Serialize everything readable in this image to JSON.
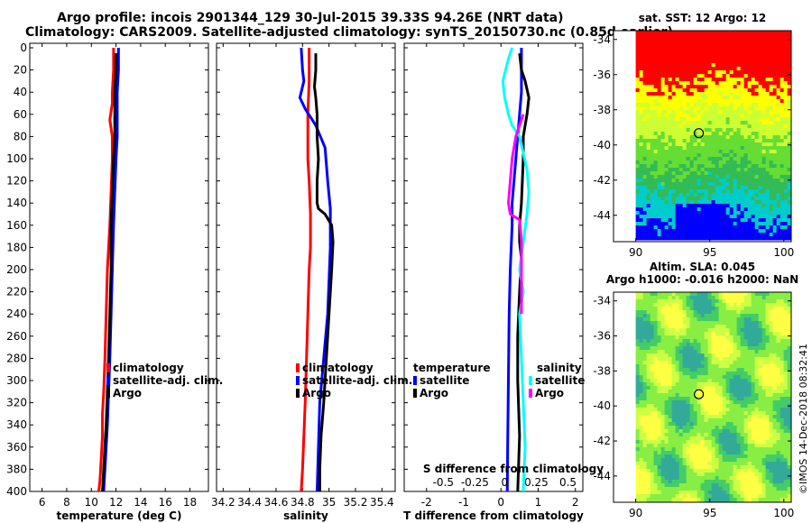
{
  "header": {
    "line1": "Argo profile: incois 2901344_129 30-Jul-2015 39.33S 94.26E (NRT data)",
    "line2": "Climatology: CARS2009. Satellite-adjusted climatology: synTS_20150730.nc (0.85d earlier)"
  },
  "credit": "©IMOS 14-Dec-2018 08:32:41",
  "colors": {
    "climatology": "#ff0000",
    "satellite": "#0000ff",
    "argo": "#000000",
    "sal_satellite": "#00ffff",
    "sal_argo": "#ff00ff"
  },
  "chart_data": [
    {
      "type": "line",
      "id": "temperature",
      "xlabel": "temperature (deg C)",
      "ylabel": "",
      "xlim": [
        5,
        19.5
      ],
      "ylim": [
        400,
        0
      ],
      "xticks": [
        "6",
        "8",
        "10",
        "12",
        "14",
        "16",
        "18"
      ],
      "xtick_values": [
        6,
        8,
        10,
        12,
        14,
        16,
        18
      ],
      "yticks": [
        "0",
        "20",
        "40",
        "60",
        "80",
        "100",
        "120",
        "140",
        "160",
        "180",
        "200",
        "220",
        "240",
        "260",
        "280",
        "300",
        "320",
        "340",
        "360",
        "380",
        "400"
      ],
      "ytick_values": [
        0,
        20,
        40,
        60,
        80,
        100,
        120,
        140,
        160,
        180,
        200,
        220,
        240,
        260,
        280,
        300,
        320,
        340,
        360,
        380,
        400
      ],
      "legend": [
        "climatology",
        "satellite-adj. clim.",
        "Argo"
      ],
      "series": [
        {
          "name": "climatology",
          "color": "#ff0000",
          "x": [
            11.8,
            11.8,
            11.7,
            11.7,
            11.5,
            11.7,
            11.7,
            11.6,
            11.5,
            11.3,
            11.2,
            11.1,
            11.0,
            10.9,
            10.9,
            10.8,
            10.7,
            10.6
          ],
          "y": [
            0,
            20,
            40,
            50,
            65,
            80,
            100,
            130,
            160,
            200,
            240,
            280,
            310,
            330,
            350,
            370,
            390,
            400
          ]
        },
        {
          "name": "satellite-adj. clim.",
          "color": "#0000ff",
          "x": [
            12.2,
            12.2,
            12.1,
            12.1,
            12.1,
            12.0,
            11.9,
            11.8,
            11.7,
            11.6,
            11.5,
            11.4,
            11.3,
            11.2,
            11.1,
            11.0
          ],
          "y": [
            0,
            20,
            40,
            60,
            80,
            100,
            130,
            160,
            200,
            240,
            280,
            310,
            340,
            360,
            380,
            400
          ]
        },
        {
          "name": "Argo",
          "color": "#000000",
          "x": [
            12.0,
            12.0,
            11.9,
            11.9,
            11.9,
            11.8,
            11.7,
            11.6,
            11.6,
            11.5,
            11.4,
            11.3,
            11.2,
            11.1,
            11.0,
            10.9
          ],
          "y": [
            5,
            20,
            40,
            60,
            80,
            100,
            130,
            160,
            200,
            240,
            280,
            310,
            340,
            360,
            380,
            400
          ]
        }
      ]
    },
    {
      "type": "line",
      "id": "salinity",
      "xlabel": "salinity",
      "ylabel": "",
      "xlim": [
        34.15,
        35.5
      ],
      "ylim": [
        400,
        0
      ],
      "xticks": [
        "34.2",
        "34.4",
        "34.6",
        "34.8",
        "35",
        "35.2",
        "35.4"
      ],
      "xtick_values": [
        34.2,
        34.4,
        34.6,
        34.8,
        35.0,
        35.2,
        35.4
      ],
      "legend": [
        "climatology",
        "satellite-adj. clim.",
        "Argo"
      ],
      "series": [
        {
          "name": "climatology",
          "color": "#ff0000",
          "x": [
            34.85,
            34.85,
            34.84,
            34.84,
            34.84,
            34.85,
            34.86,
            34.86,
            34.85,
            34.84,
            34.83,
            34.82,
            34.81,
            34.8,
            34.79
          ],
          "y": [
            0,
            30,
            60,
            80,
            100,
            120,
            150,
            180,
            200,
            240,
            280,
            320,
            350,
            380,
            400
          ]
        },
        {
          "name": "satellite-adj. clim.",
          "color": "#0000ff",
          "x": [
            34.79,
            34.8,
            34.81,
            34.78,
            34.82,
            34.9,
            34.97,
            34.99,
            35.01,
            35.01,
            34.99,
            34.96,
            34.93,
            34.92,
            34.91
          ],
          "y": [
            0,
            20,
            30,
            45,
            55,
            70,
            90,
            120,
            145,
            180,
            240,
            280,
            320,
            360,
            400
          ]
        },
        {
          "name": "Argo",
          "color": "#000000",
          "x": [
            34.9,
            34.9,
            34.89,
            34.9,
            34.91,
            34.91,
            34.92,
            34.91,
            34.91,
            34.91,
            34.92,
            34.97,
            35.02,
            35.03,
            35.02,
            35.0,
            34.98,
            34.96,
            34.94,
            34.93,
            34.93
          ],
          "y": [
            5,
            20,
            35,
            45,
            60,
            80,
            100,
            120,
            135,
            140,
            145,
            150,
            160,
            175,
            200,
            240,
            280,
            320,
            350,
            380,
            400
          ]
        }
      ]
    },
    {
      "type": "line",
      "id": "difference",
      "xlabel": "T difference from climatology",
      "xlabel_top": "S difference from climatology",
      "xlim": [
        -2.6,
        2.2
      ],
      "ylim": [
        400,
        0
      ],
      "xticks": [
        "-2",
        "-1",
        "0",
        "1",
        "2"
      ],
      "xtick_values": [
        -2,
        -1,
        0,
        1,
        2
      ],
      "xticks_top": [
        "-0.5",
        "-0.25",
        "0",
        "0.25",
        "0.5"
      ],
      "xtick_top_values": [
        -1.55,
        -0.7,
        0.1,
        0.95,
        1.8
      ],
      "legend_temperature_title": "temperature",
      "legend_salinity_title": "salinity",
      "legend_temperature": [
        "satellite",
        "Argo"
      ],
      "legend_salinity": [
        "satellite",
        "Argo"
      ],
      "series": [
        {
          "name": "T satellite",
          "color": "#0000ff",
          "x": [
            0.55,
            0.55,
            0.55,
            0.5,
            0.45,
            0.4,
            0.35,
            0.3,
            0.3,
            0.25,
            0.22,
            0.2,
            0.18,
            0.17
          ],
          "y": [
            0,
            20,
            40,
            60,
            80,
            100,
            120,
            140,
            160,
            200,
            240,
            300,
            360,
            400
          ]
        },
        {
          "name": "T Argo",
          "color": "#000000",
          "x": [
            0.5,
            0.55,
            0.65,
            0.75,
            0.7,
            0.6,
            0.6,
            0.55,
            0.5,
            0.5,
            0.55,
            0.5,
            0.45,
            0.45,
            0.5,
            0.45
          ],
          "y": [
            5,
            20,
            30,
            45,
            60,
            80,
            100,
            140,
            160,
            175,
            190,
            220,
            260,
            300,
            350,
            400
          ]
        },
        {
          "name": "S satellite",
          "color": "#00ffff",
          "x": [
            0.3,
            0.2,
            0.05,
            0.1,
            0.2,
            0.3,
            0.5,
            0.6,
            0.7,
            0.75,
            0.7,
            0.6,
            0.5,
            0.6,
            0.5,
            0.55,
            0.6,
            0.65,
            0.6
          ],
          "y": [
            0,
            10,
            30,
            45,
            60,
            70,
            80,
            95,
            110,
            130,
            150,
            175,
            200,
            220,
            240,
            280,
            320,
            360,
            400
          ]
        },
        {
          "name": "S Argo",
          "color": "#ff00ff",
          "x": [
            0.6,
            0.5,
            0.4,
            0.3,
            0.25,
            0.2,
            0.25,
            0.5,
            0.55,
            0.55,
            0.55
          ],
          "y": [
            60,
            70,
            80,
            100,
            120,
            140,
            150,
            155,
            175,
            200,
            240
          ]
        }
      ]
    },
    {
      "type": "heatmap",
      "id": "sst-map",
      "title": "sat. SST: 12 Argo: 12",
      "xlim": [
        88.5,
        100.5
      ],
      "ylim": [
        -45.5,
        -33.5
      ],
      "xticks": [
        "90",
        "95",
        "100"
      ],
      "xtick_values": [
        90,
        95,
        100
      ],
      "yticks": [
        "-34",
        "-36",
        "-38",
        "-40",
        "-42",
        "-44"
      ],
      "ytick_values": [
        -34,
        -36,
        -38,
        -40,
        -42,
        -44
      ],
      "marker_lon": 94.26,
      "marker_lat": -39.33
    },
    {
      "type": "heatmap",
      "id": "sla-map",
      "title": "Altim. SLA: 0.045",
      "subtitle": "Argo h1000: -0.016 h2000: NaN",
      "xlim": [
        88.5,
        100.5
      ],
      "ylim": [
        -45.5,
        -33.5
      ],
      "xticks": [
        "90",
        "95",
        "100"
      ],
      "xtick_values": [
        90,
        95,
        100
      ],
      "yticks": [
        "-34",
        "-36",
        "-38",
        "-40",
        "-42",
        "-44"
      ],
      "ytick_values": [
        -34,
        -36,
        -38,
        -40,
        -42,
        -44
      ],
      "marker_lon": 94.26,
      "marker_lat": -39.33
    }
  ]
}
